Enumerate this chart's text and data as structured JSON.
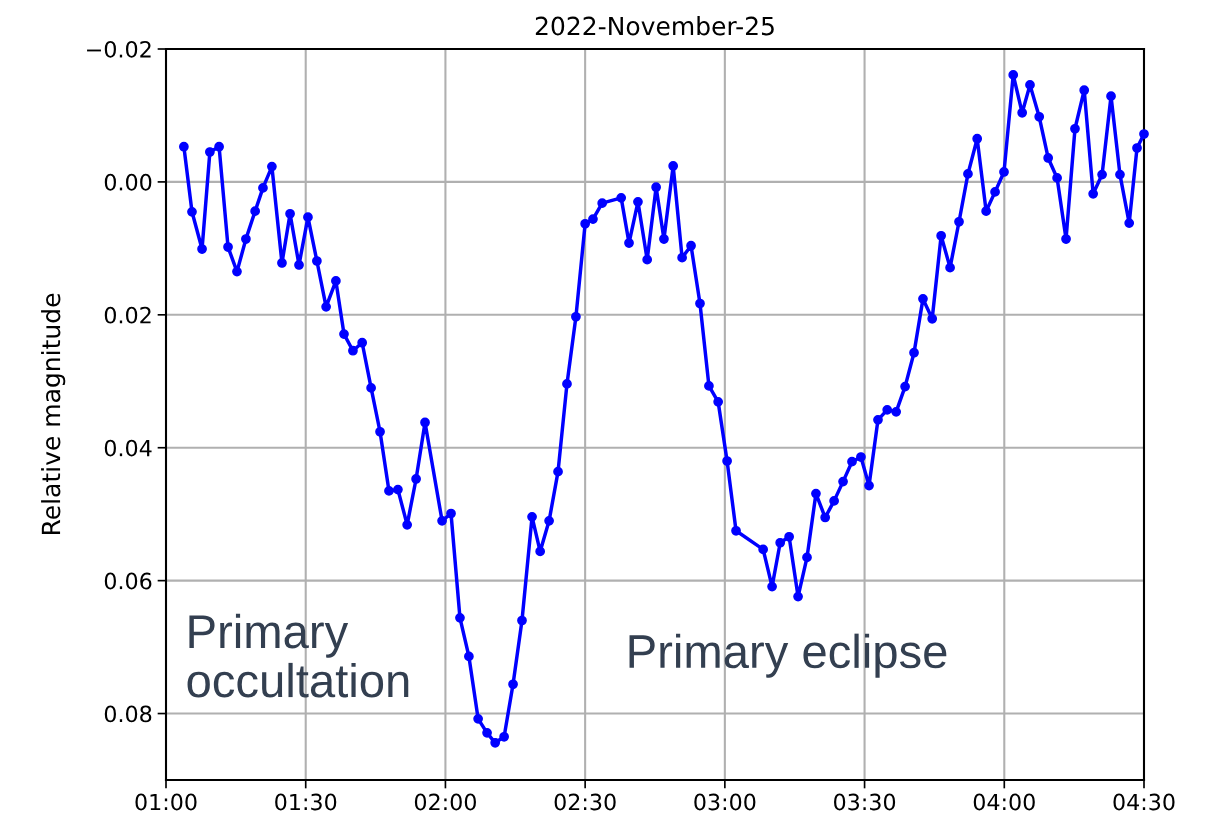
{
  "chart_data": {
    "type": "line",
    "title": "2022-November-25",
    "ylabel": "Relative magnitude",
    "x": [
      1.064,
      1.093,
      1.129,
      1.157,
      1.19,
      1.222,
      1.254,
      1.286,
      1.319,
      1.347,
      1.379,
      1.415,
      1.444,
      1.476,
      1.508,
      1.54,
      1.573,
      1.608,
      1.637,
      1.669,
      1.702,
      1.734,
      1.766,
      1.798,
      1.83,
      1.863,
      1.895,
      1.927,
      1.988,
      2.02,
      2.052,
      2.084,
      2.117,
      2.149,
      2.178,
      2.21,
      2.242,
      2.274,
      2.31,
      2.339,
      2.371,
      2.403,
      2.435,
      2.467,
      2.5,
      2.528,
      2.561,
      2.629,
      2.657,
      2.689,
      2.722,
      2.754,
      2.782,
      2.815,
      2.847,
      2.879,
      2.911,
      2.943,
      2.976,
      3.008,
      3.04,
      3.137,
      3.169,
      3.198,
      3.23,
      3.262,
      3.294,
      3.326,
      3.359,
      3.391,
      3.423,
      3.455,
      3.487,
      3.516,
      3.548,
      3.581,
      3.613,
      3.645,
      3.677,
      3.709,
      3.742,
      3.774,
      3.806,
      3.838,
      3.87,
      3.903,
      3.935,
      3.967,
      3.999,
      4.032,
      4.064,
      4.092,
      4.125,
      4.157,
      4.189,
      4.221,
      4.253,
      4.286,
      4.318,
      4.35,
      4.382,
      4.414,
      4.447,
      4.475,
      4.5
    ],
    "series": [
      {
        "color": "#0000ff",
        "values": [
          -0.0053,
          0.0045,
          0.0101,
          -0.0045,
          -0.0053,
          0.0098,
          0.0135,
          0.0086,
          0.0044,
          0.0009,
          -0.0023,
          0.0122,
          0.0048,
          0.0125,
          0.0053,
          0.0119,
          0.0188,
          0.0149,
          0.0229,
          0.0254,
          0.0242,
          0.031,
          0.0376,
          0.0465,
          0.0463,
          0.0516,
          0.0447,
          0.0362,
          0.051,
          0.0499,
          0.0656,
          0.0714,
          0.0808,
          0.0829,
          0.0844,
          0.0835,
          0.0756,
          0.066,
          0.0504,
          0.0556,
          0.051,
          0.0436,
          0.0304,
          0.0203,
          0.0063,
          0.0056,
          0.0032,
          0.0024,
          0.0092,
          0.003,
          0.0117,
          0.0008,
          0.0086,
          -0.0024,
          0.0114,
          0.0096,
          0.0183,
          0.0307,
          0.0331,
          0.042,
          0.0525,
          0.0553,
          0.0609,
          0.0543,
          0.0534,
          0.0624,
          0.0565,
          0.0469,
          0.0505,
          0.048,
          0.0451,
          0.0421,
          0.0414,
          0.0457,
          0.0358,
          0.0343,
          0.0346,
          0.0308,
          0.0257,
          0.0176,
          0.0206,
          0.0081,
          0.0129,
          0.006,
          -0.0012,
          -0.0065,
          0.0044,
          0.0015,
          -0.0015,
          -0.0161,
          -0.0104,
          -0.0146,
          -0.0098,
          -0.0036,
          -0.0006,
          0.0086,
          -0.008,
          -0.0138,
          0.0018,
          -0.0011,
          -0.0129,
          -0.0011,
          0.0062,
          -0.0051,
          -0.0072
        ]
      }
    ],
    "xlim": [
      1,
      4.5
    ],
    "xticks": [
      {
        "value": 1,
        "label": "01:00"
      },
      {
        "value": 1.5,
        "label": "01:30"
      },
      {
        "value": 2,
        "label": "02:00"
      },
      {
        "value": 2.5,
        "label": "02:30"
      },
      {
        "value": 3,
        "label": "03:00"
      },
      {
        "value": 3.5,
        "label": "03:30"
      },
      {
        "value": 4,
        "label": "04:00"
      },
      {
        "value": 4.5,
        "label": "04:30"
      }
    ],
    "ylim": [
      0.09,
      -0.02
    ],
    "yticks": [
      {
        "value": -0.02,
        "label": "−0.02"
      },
      {
        "value": 0,
        "label": "0.00"
      },
      {
        "value": 0.02,
        "label": "0.02"
      },
      {
        "value": 0.04,
        "label": "0.04"
      },
      {
        "value": 0.06,
        "label": "0.06"
      },
      {
        "value": 0.08,
        "label": "0.08"
      }
    ],
    "annotations": [
      "Primary\noccultation",
      "Primary eclipse"
    ],
    "grid": true,
    "marker": "circle",
    "line_style": "solid",
    "legend": false
  }
}
